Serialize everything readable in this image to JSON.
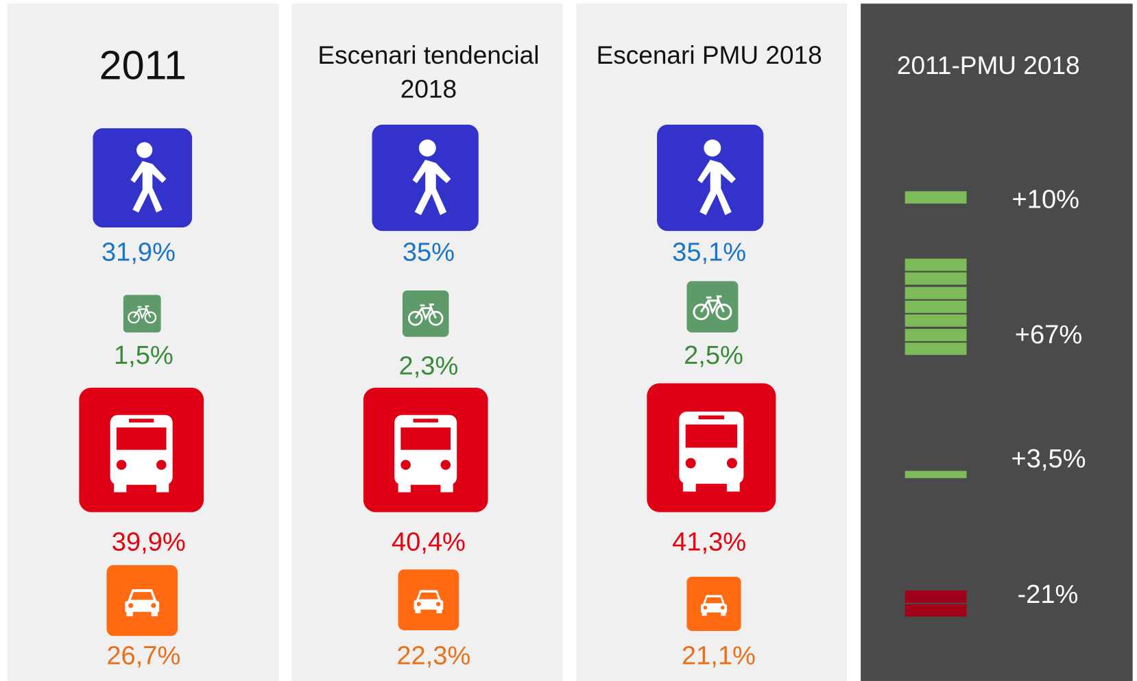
{
  "panels": [
    {
      "title": "2011",
      "values": [
        "31,9%",
        "1,5%",
        "39,9%",
        "26,7%"
      ]
    },
    {
      "title": "Escenari tendencial 2018",
      "values": [
        "35%",
        "2,3%",
        "40,4%",
        "22,3%"
      ]
    },
    {
      "title": "Escenari PMU 2018",
      "values": [
        "35,1%",
        "2,5%",
        "41,3%",
        "21,1%"
      ]
    }
  ],
  "change": {
    "title": "2011-PMU 2018",
    "values": [
      "+10%",
      "+67%",
      "+3,5%",
      "-21%"
    ]
  }
}
